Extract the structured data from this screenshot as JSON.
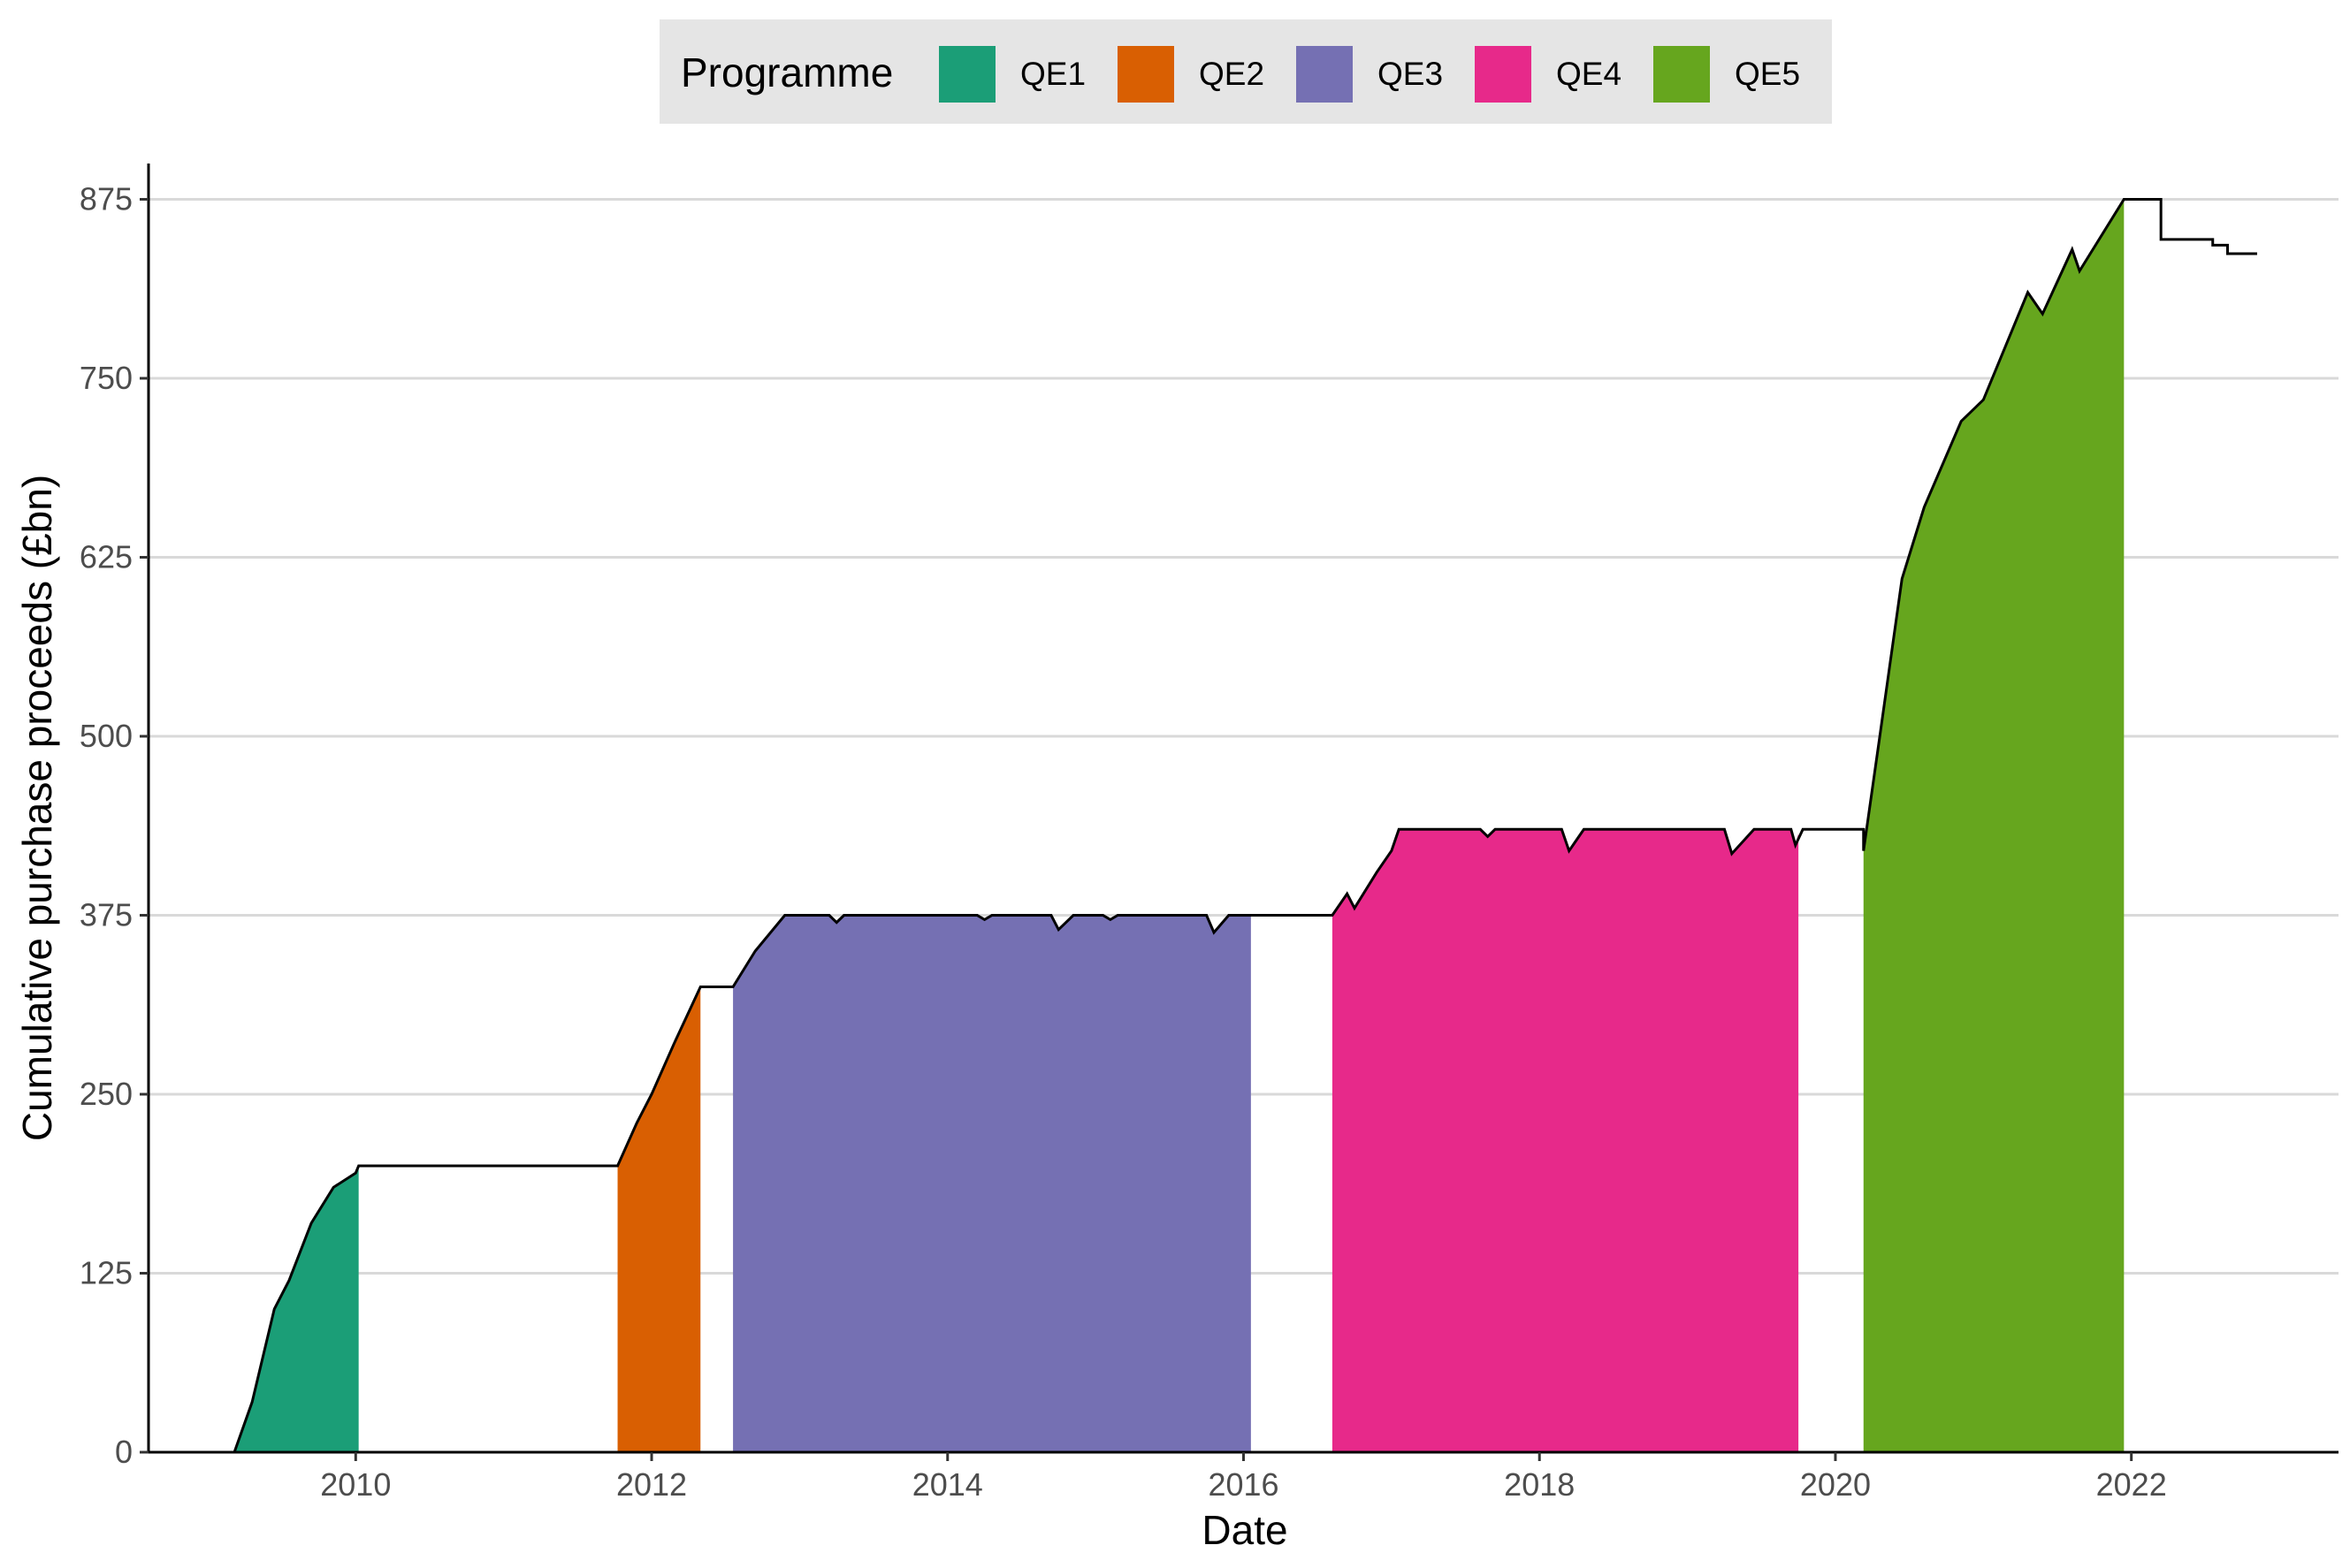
{
  "chart_data": {
    "type": "area",
    "title": "",
    "xlabel": "Date",
    "ylabel": "Cumulative purchase proceeds (£bn)",
    "xlim": [
      2008.6,
      2023.4
    ],
    "ylim": [
      0,
      900
    ],
    "x_ticks": [
      2010,
      2012,
      2014,
      2016,
      2018,
      2020,
      2022
    ],
    "x_tick_labels": [
      "2010",
      "2012",
      "2014",
      "2016",
      "2018",
      "2020",
      "2022"
    ],
    "y_ticks": [
      0,
      125,
      250,
      375,
      500,
      625,
      750,
      875
    ],
    "y_tick_labels": [
      "0",
      "125",
      "250",
      "375",
      "500",
      "625",
      "750",
      "875"
    ],
    "grid": {
      "horizontal": true,
      "vertical": false
    },
    "legend": {
      "title": "Programme",
      "position": "top"
    },
    "series": [
      {
        "name": "QE1",
        "color": "#1b9e77",
        "points": [
          [
            2009.18,
            0
          ],
          [
            2009.3,
            35
          ],
          [
            2009.45,
            100
          ],
          [
            2009.55,
            120
          ],
          [
            2009.7,
            160
          ],
          [
            2009.85,
            185
          ],
          [
            2010.0,
            195
          ],
          [
            2010.02,
            200
          ]
        ]
      },
      {
        "name": "QE2",
        "color": "#d95f02",
        "points": [
          [
            2011.77,
            200
          ],
          [
            2011.9,
            230
          ],
          [
            2012.0,
            250
          ],
          [
            2012.15,
            285
          ],
          [
            2012.33,
            325
          ]
        ]
      },
      {
        "name": "QE3",
        "color": "#7570b3",
        "points": [
          [
            2012.55,
            325
          ],
          [
            2012.7,
            350
          ],
          [
            2012.9,
            375
          ],
          [
            2013.2,
            375
          ],
          [
            2013.25,
            370
          ],
          [
            2013.3,
            375
          ],
          [
            2014.2,
            375
          ],
          [
            2014.25,
            372
          ],
          [
            2014.3,
            375
          ],
          [
            2014.7,
            375
          ],
          [
            2014.75,
            365
          ],
          [
            2014.85,
            375
          ],
          [
            2015.05,
            375
          ],
          [
            2015.1,
            372
          ],
          [
            2015.15,
            375
          ],
          [
            2015.75,
            375
          ],
          [
            2015.8,
            363
          ],
          [
            2015.9,
            375
          ],
          [
            2016.05,
            375
          ]
        ]
      },
      {
        "name": "QE4",
        "color": "#e7298a",
        "points": [
          [
            2016.6,
            375
          ],
          [
            2016.7,
            390
          ],
          [
            2016.75,
            380
          ],
          [
            2016.9,
            405
          ],
          [
            2017.0,
            420
          ],
          [
            2017.05,
            435
          ],
          [
            2017.6,
            435
          ],
          [
            2017.65,
            430
          ],
          [
            2017.7,
            435
          ],
          [
            2018.15,
            435
          ],
          [
            2018.2,
            420
          ],
          [
            2018.3,
            435
          ],
          [
            2019.25,
            435
          ],
          [
            2019.3,
            418
          ],
          [
            2019.45,
            435
          ],
          [
            2019.7,
            435
          ],
          [
            2019.73,
            424
          ],
          [
            2019.75,
            432
          ]
        ]
      },
      {
        "name": "QE5",
        "color": "#66a61e",
        "points": [
          [
            2020.19,
            420
          ],
          [
            2020.3,
            500
          ],
          [
            2020.45,
            610
          ],
          [
            2020.6,
            660
          ],
          [
            2020.85,
            720
          ],
          [
            2021.0,
            735
          ],
          [
            2021.3,
            810
          ],
          [
            2021.4,
            795
          ],
          [
            2021.6,
            840
          ],
          [
            2021.65,
            825
          ],
          [
            2021.95,
            875
          ]
        ]
      }
    ],
    "total_line": {
      "color": "#000000",
      "points": [
        [
          2009.18,
          0
        ],
        [
          2009.3,
          35
        ],
        [
          2009.45,
          100
        ],
        [
          2009.55,
          120
        ],
        [
          2009.7,
          160
        ],
        [
          2009.85,
          185
        ],
        [
          2010.0,
          195
        ],
        [
          2010.02,
          200
        ],
        [
          2011.77,
          200
        ],
        [
          2011.9,
          230
        ],
        [
          2012.0,
          250
        ],
        [
          2012.15,
          285
        ],
        [
          2012.33,
          325
        ],
        [
          2012.55,
          325
        ],
        [
          2012.7,
          350
        ],
        [
          2012.9,
          375
        ],
        [
          2013.2,
          375
        ],
        [
          2013.25,
          370
        ],
        [
          2013.3,
          375
        ],
        [
          2014.2,
          375
        ],
        [
          2014.25,
          372
        ],
        [
          2014.3,
          375
        ],
        [
          2014.7,
          375
        ],
        [
          2014.75,
          365
        ],
        [
          2014.85,
          375
        ],
        [
          2015.05,
          375
        ],
        [
          2015.1,
          372
        ],
        [
          2015.15,
          375
        ],
        [
          2015.75,
          375
        ],
        [
          2015.8,
          363
        ],
        [
          2015.9,
          375
        ],
        [
          2016.6,
          375
        ],
        [
          2016.7,
          390
        ],
        [
          2016.75,
          380
        ],
        [
          2016.9,
          405
        ],
        [
          2017.0,
          420
        ],
        [
          2017.05,
          435
        ],
        [
          2017.6,
          435
        ],
        [
          2017.65,
          430
        ],
        [
          2017.7,
          435
        ],
        [
          2018.15,
          435
        ],
        [
          2018.2,
          420
        ],
        [
          2018.3,
          435
        ],
        [
          2019.25,
          435
        ],
        [
          2019.3,
          418
        ],
        [
          2019.45,
          435
        ],
        [
          2019.7,
          435
        ],
        [
          2019.73,
          424
        ],
        [
          2019.78,
          435
        ],
        [
          2020.19,
          435
        ],
        [
          2020.19,
          420
        ],
        [
          2020.3,
          500
        ],
        [
          2020.45,
          610
        ],
        [
          2020.6,
          660
        ],
        [
          2020.85,
          720
        ],
        [
          2021.0,
          735
        ],
        [
          2021.3,
          810
        ],
        [
          2021.4,
          795
        ],
        [
          2021.6,
          840
        ],
        [
          2021.65,
          825
        ],
        [
          2021.95,
          875
        ],
        [
          2022.2,
          875
        ],
        [
          2022.2,
          847
        ],
        [
          2022.55,
          847
        ],
        [
          2022.55,
          843
        ],
        [
          2022.65,
          843
        ],
        [
          2022.65,
          837
        ],
        [
          2022.85,
          837
        ]
      ]
    }
  }
}
